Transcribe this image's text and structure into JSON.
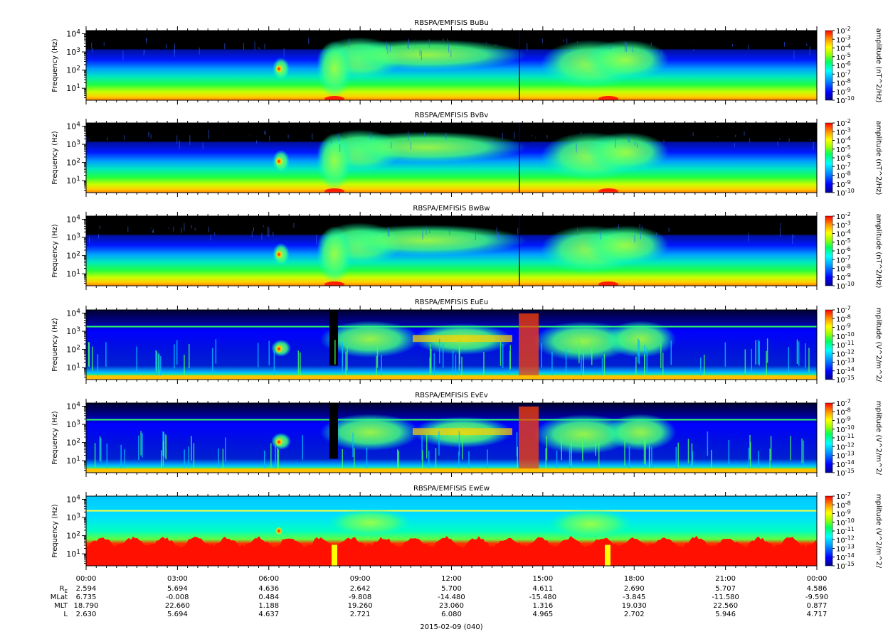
{
  "chart_data": [
    {
      "type": "heatmap",
      "title": "RBSPA/EMFISIS  BuBu",
      "ylabel": "Frequency (Hz)",
      "yscale": "log",
      "y_ticks": [
        "10",
        "10",
        "10",
        "10"
      ],
      "y_tick_exponents": [
        "1",
        "2",
        "3",
        "4"
      ],
      "colorbar_label": "amplitude (nT^2/Hz)",
      "colorbar_ticks": [
        "10",
        "10",
        "10",
        "10",
        "10",
        "10",
        "10",
        "10",
        "10"
      ],
      "colorbar_tick_exponents": [
        "-2",
        "-3",
        "-4",
        "-5",
        "-6",
        "-7",
        "-8",
        "-9",
        "-10"
      ],
      "kind": "magnetic"
    },
    {
      "type": "heatmap",
      "title": "RBSPA/EMFISIS  BvBv",
      "ylabel": "Frequency (Hz)",
      "yscale": "log",
      "y_ticks": [
        "10",
        "10",
        "10",
        "10"
      ],
      "y_tick_exponents": [
        "1",
        "2",
        "3",
        "4"
      ],
      "colorbar_label": "amplitude (nT^2/Hz)",
      "colorbar_ticks": [
        "10",
        "10",
        "10",
        "10",
        "10",
        "10",
        "10",
        "10",
        "10"
      ],
      "colorbar_tick_exponents": [
        "-2",
        "-3",
        "-4",
        "-5",
        "-6",
        "-7",
        "-8",
        "-9",
        "-10"
      ],
      "kind": "magnetic"
    },
    {
      "type": "heatmap",
      "title": "RBSPA/EMFISIS  BwBw",
      "ylabel": "Frequency (Hz)",
      "yscale": "log",
      "y_ticks": [
        "10",
        "10",
        "10",
        "10"
      ],
      "y_tick_exponents": [
        "1",
        "2",
        "3",
        "4"
      ],
      "colorbar_label": "amplitude (nT^2/Hz)",
      "colorbar_ticks": [
        "10",
        "10",
        "10",
        "10",
        "10",
        "10",
        "10",
        "10",
        "10"
      ],
      "colorbar_tick_exponents": [
        "-2",
        "-3",
        "-4",
        "-5",
        "-6",
        "-7",
        "-8",
        "-9",
        "-10"
      ],
      "kind": "magnetic"
    },
    {
      "type": "heatmap",
      "title": "RBSPA/EMFISIS  EuEu",
      "ylabel": "Frequency (Hz)",
      "yscale": "log",
      "y_ticks": [
        "10",
        "10",
        "10",
        "10"
      ],
      "y_tick_exponents": [
        "1",
        "2",
        "3",
        "4"
      ],
      "colorbar_label": "mplitude (V^2/m^2/",
      "colorbar_ticks": [
        "10",
        "10",
        "10",
        "10",
        "10",
        "10",
        "10",
        "10",
        "10"
      ],
      "colorbar_tick_exponents": [
        "-7",
        "-8",
        "-9",
        "-10",
        "-11",
        "-12",
        "-13",
        "-14",
        "-15"
      ],
      "kind": "electric"
    },
    {
      "type": "heatmap",
      "title": "RBSPA/EMFISIS  EvEv",
      "ylabel": "Frequency (Hz)",
      "yscale": "log",
      "y_ticks": [
        "10",
        "10",
        "10",
        "10"
      ],
      "y_tick_exponents": [
        "1",
        "2",
        "3",
        "4"
      ],
      "colorbar_label": "mplitude (V^2/m^2/",
      "colorbar_ticks": [
        "10",
        "10",
        "10",
        "10",
        "10",
        "10",
        "10",
        "10",
        "10"
      ],
      "colorbar_tick_exponents": [
        "-7",
        "-8",
        "-9",
        "-10",
        "-11",
        "-12",
        "-13",
        "-14",
        "-15"
      ],
      "kind": "electric"
    },
    {
      "type": "heatmap",
      "title": "RBSPA/EMFISIS  EwEw",
      "ylabel": "Frequency (Hz)",
      "yscale": "log",
      "y_ticks": [
        "10",
        "10",
        "10",
        "10"
      ],
      "y_tick_exponents": [
        "1",
        "2",
        "3",
        "4"
      ],
      "colorbar_label": "mplitude (V^2/m^2/",
      "colorbar_ticks": [
        "10",
        "10",
        "10",
        "10",
        "10",
        "10",
        "10",
        "10",
        "10"
      ],
      "colorbar_tick_exponents": [
        "-7",
        "-8",
        "-9",
        "-10",
        "-11",
        "-12",
        "-13",
        "-14",
        "-15"
      ],
      "kind": "ew"
    }
  ],
  "ephemeris": {
    "time_labels": [
      "00:00",
      "03:00",
      "06:00",
      "09:00",
      "12:00",
      "15:00",
      "18:00",
      "21:00",
      "00:00"
    ],
    "rows": [
      {
        "label": "R",
        "label_sub": "E",
        "values": [
          "2.594",
          "5.694",
          "4.636",
          "2.642",
          "5.700",
          "4.611",
          "2.690",
          "5.707",
          "4.586"
        ]
      },
      {
        "label": "MLat",
        "label_sub": "",
        "values": [
          "6.735",
          "-0.008",
          "0.484",
          "-9.808",
          "-14.480",
          "-15.480",
          "-3.845",
          "-11.580",
          "-9.590"
        ]
      },
      {
        "label": "MLT",
        "label_sub": "",
        "values": [
          "18.790",
          "22.660",
          "1.188",
          "19.260",
          "23.060",
          "1.316",
          "19.030",
          "22.560",
          "0.877"
        ]
      },
      {
        "label": "L",
        "label_sub": "",
        "values": [
          "2.630",
          "5.694",
          "4.637",
          "2.721",
          "6.080",
          "4.965",
          "2.702",
          "5.946",
          "4.717"
        ]
      }
    ],
    "date_label": "2015-02-09 (040)"
  },
  "colors": {
    "colormap": [
      "#000080",
      "#0000ff",
      "#0080ff",
      "#00ffff",
      "#00ff80",
      "#80ff00",
      "#ffff00",
      "#ff8000",
      "#ff0000"
    ],
    "background_top": "#000000"
  }
}
